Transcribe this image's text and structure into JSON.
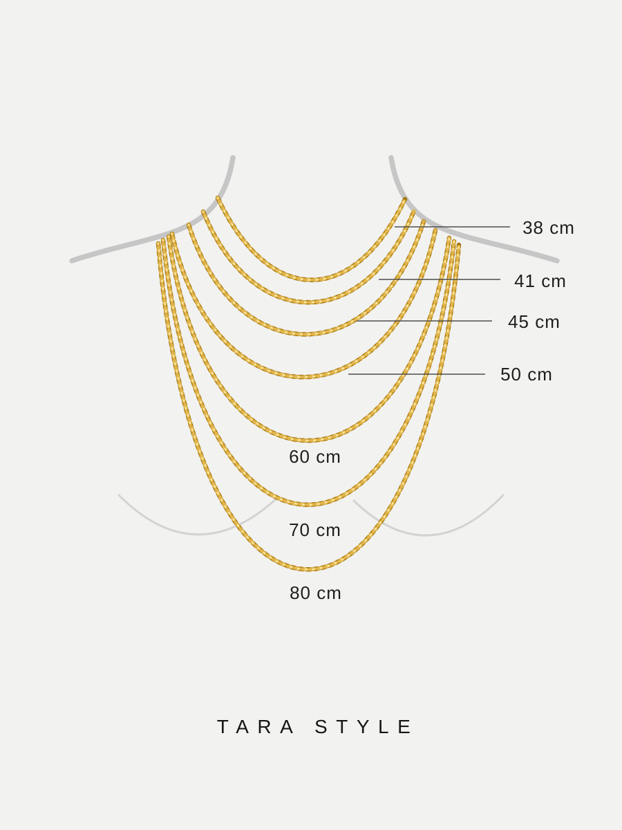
{
  "brand": {
    "name": "TARA STYLE"
  },
  "size_labels": [
    {
      "length_cm": 38,
      "label": "38 cm",
      "placement": "right"
    },
    {
      "length_cm": 41,
      "label": "41 cm",
      "placement": "right"
    },
    {
      "length_cm": 45,
      "label": "45 cm",
      "placement": "right"
    },
    {
      "length_cm": 50,
      "label": "50 cm",
      "placement": "right"
    },
    {
      "length_cm": 60,
      "label": "60 cm",
      "placement": "center"
    },
    {
      "length_cm": 70,
      "label": "70 cm",
      "placement": "center"
    },
    {
      "length_cm": 80,
      "label": "80 cm",
      "placement": "center"
    }
  ],
  "colors": {
    "background": "#f2f2f0",
    "chain_gold_dark": "#a2740f",
    "chain_gold_light": "#e2b64c",
    "chain_gold_highlight": "#ffeeae",
    "silhouette": "#c6c6c6",
    "bust_contour": "#d3d3d3",
    "leader_line": "#4d4d4d",
    "label_text": "#1e1e1e"
  }
}
